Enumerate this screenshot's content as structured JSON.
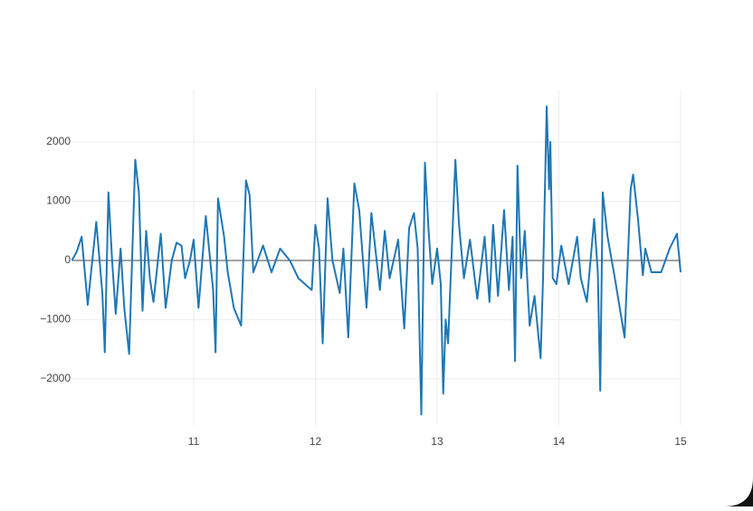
{
  "chart_data": {
    "type": "line",
    "x": [
      10.0,
      10.04,
      10.08,
      10.13,
      10.2,
      10.25,
      10.27,
      10.3,
      10.33,
      10.36,
      10.4,
      10.43,
      10.47,
      10.52,
      10.55,
      10.58,
      10.61,
      10.64,
      10.67,
      10.73,
      10.77,
      10.82,
      10.86,
      10.9,
      10.93,
      10.97,
      11.0,
      11.04,
      11.1,
      11.16,
      11.18,
      11.2,
      11.25,
      11.28,
      11.33,
      11.39,
      11.43,
      11.46,
      11.49,
      11.57,
      11.64,
      11.71,
      11.79,
      11.86,
      11.97,
      12.0,
      12.03,
      12.06,
      12.1,
      12.14,
      12.2,
      12.23,
      12.27,
      12.32,
      12.36,
      12.42,
      12.46,
      12.53,
      12.57,
      12.61,
      12.68,
      12.73,
      12.77,
      12.81,
      12.84,
      12.87,
      12.9,
      12.93,
      12.96,
      13.0,
      13.03,
      13.05,
      13.07,
      13.09,
      13.15,
      13.18,
      13.22,
      13.27,
      13.33,
      13.39,
      13.43,
      13.46,
      13.5,
      13.55,
      13.59,
      13.62,
      13.64,
      13.66,
      13.69,
      13.72,
      13.76,
      13.8,
      13.85,
      13.87,
      13.9,
      13.92,
      13.93,
      13.95,
      13.98,
      14.02,
      14.08,
      14.15,
      14.18,
      14.23,
      14.29,
      14.32,
      14.34,
      14.36,
      14.4,
      14.46,
      14.54,
      14.59,
      14.61,
      14.65,
      14.69,
      14.71,
      14.76,
      14.84,
      14.91,
      14.97,
      15.0
    ],
    "series": [
      {
        "color": "#1f77b4",
        "values": [
          0,
          150,
          400,
          -750,
          650,
          -550,
          -1550,
          1150,
          0,
          -900,
          200,
          -800,
          -1580,
          1700,
          1150,
          -850,
          500,
          -300,
          -700,
          450,
          -800,
          0,
          300,
          250,
          -300,
          0,
          350,
          -800,
          750,
          -500,
          -1550,
          1050,
          400,
          -200,
          -800,
          -1100,
          1350,
          1100,
          -200,
          250,
          -200,
          200,
          0,
          -300,
          -500,
          600,
          200,
          -1400,
          1050,
          0,
          -550,
          200,
          -1300,
          1300,
          850,
          -800,
          800,
          -500,
          500,
          -300,
          350,
          -1150,
          550,
          800,
          200,
          -2600,
          1650,
          500,
          -400,
          200,
          -400,
          -2250,
          -1000,
          -1400,
          1700,
          600,
          -300,
          350,
          -650,
          400,
          -700,
          600,
          -600,
          850,
          -500,
          400,
          -1700,
          1600,
          -300,
          500,
          -1100,
          -600,
          -1650,
          -300,
          2600,
          1200,
          2000,
          -300,
          -400,
          250,
          -400,
          400,
          -300,
          -700,
          700,
          -200,
          -2200,
          1150,
          400,
          -300,
          -1300,
          1200,
          1450,
          700,
          -250,
          200,
          -200,
          -200,
          200,
          450,
          -200
        ]
      }
    ],
    "xlim": [
      10.004,
      15
    ],
    "ylim": [
      -2780,
      2870
    ],
    "xticks": [
      11,
      12,
      13,
      14,
      15
    ],
    "yticks": [
      {
        "value": -2000,
        "label": "−2000"
      },
      {
        "value": -1000,
        "label": "−1000"
      },
      0,
      1000,
      2000
    ],
    "grid": true
  }
}
